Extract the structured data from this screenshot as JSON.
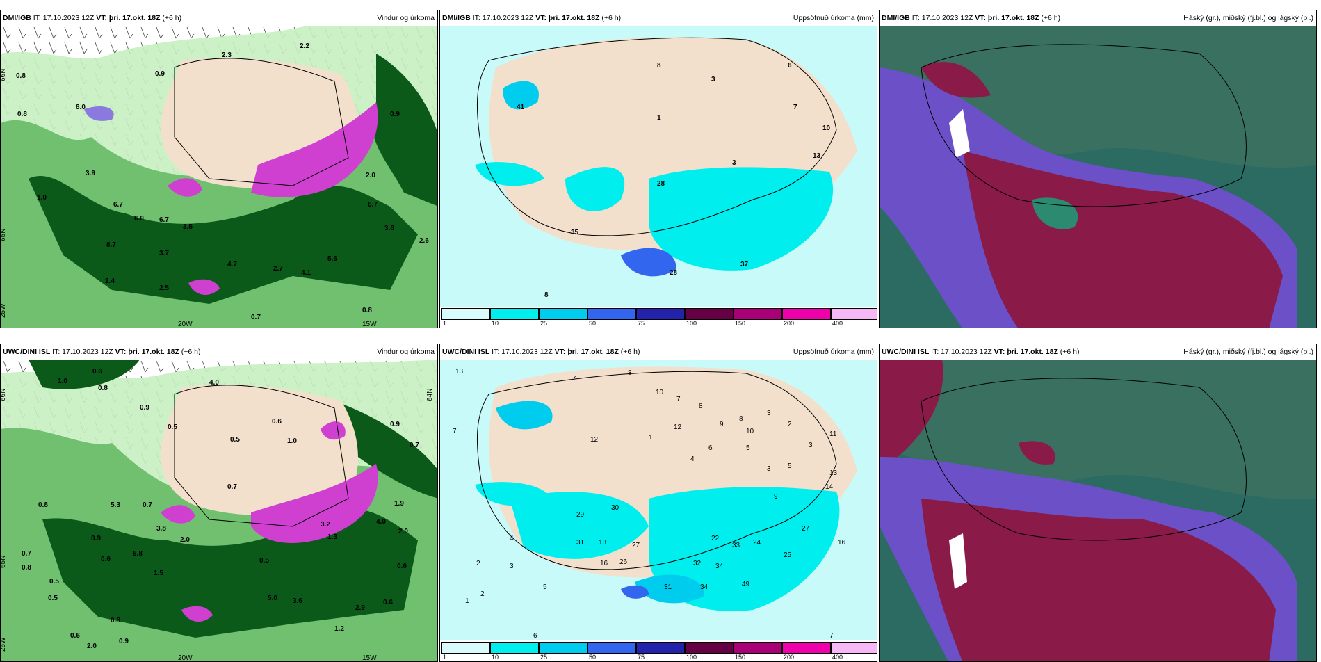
{
  "panels": [
    {
      "source": "DMI/IGB",
      "it": "IT: 17.10.2023 12Z",
      "vt": "VT: þri. 17.okt. 18Z",
      "lead": "(+6 h)",
      "title": "Vindur og úrkoma",
      "labels": [
        "0.8",
        "0.8",
        "8.0",
        "3.9",
        "1.0",
        "6.7",
        "6.0",
        "6.7",
        "8.7",
        "3.7",
        "2.4",
        "2.5",
        "4.7",
        "2.7",
        "4.1",
        "5.6",
        "3.8",
        "2.6",
        "0.9",
        "0.8",
        "0.7",
        "2.3",
        "2.2",
        "2.0",
        "6.7",
        "0.9",
        "3.5"
      ],
      "axis": [
        "66N",
        "65N",
        "25W",
        "20W",
        "15W"
      ]
    },
    {
      "source": "DMI/IGB",
      "it": "IT: 17.10.2023 12Z",
      "vt": "VT: þri. 17.okt. 18Z",
      "lead": "(+6 h)",
      "title": "Uppsöfnuð úrkoma (mm)",
      "labels": [
        "41",
        "28",
        "35",
        "37",
        "8",
        "8",
        "6",
        "3",
        "7",
        "10",
        "13",
        "3",
        "1",
        "28"
      ]
    },
    {
      "source": "DMI/IGB",
      "it": "IT: 17.10.2023 12Z",
      "vt": "VT: þri. 17.okt. 18Z",
      "lead": "(+6 h)",
      "title": "Háský (gr.), miðský (fj.bl.) og lágský (bl.)"
    },
    {
      "source": "UWC/DINI ISL",
      "it": "IT: 17.10.2023 12Z",
      "vt": "VT: þri. 17.okt. 18Z",
      "lead": "(+6 h)",
      "title": "Vindur og úrkoma",
      "labels": [
        "1.0",
        "0.6",
        "0.8",
        "4.0",
        "0.9",
        "0.5",
        "0.6",
        "1.0",
        "0.9",
        "0.7",
        "0.6",
        "0.7",
        "0.5",
        "5.3",
        "3.8",
        "0.8",
        "0.7",
        "0.5",
        "6.8",
        "2.0",
        "0.5",
        "0.6",
        "0.9",
        "1.5",
        "2.0",
        "1.9",
        "3.2",
        "4.0",
        "1.3",
        "2.9",
        "0.6",
        "5.0",
        "3.6",
        "0.8",
        "0.6",
        "0.9",
        "2.0",
        "1.2",
        "0.6",
        "0.5",
        "0.8"
      ],
      "axis": [
        "66N",
        "65N",
        "64N",
        "25W",
        "20W",
        "15W"
      ]
    },
    {
      "source": "UWC/DINI ISL",
      "it": "IT: 17.10.2023 12Z",
      "vt": "VT: þri. 17.okt. 18Z",
      "lead": "(+6 h)",
      "title": "Uppsöfnuð úrkoma (mm)",
      "labels": [
        "13",
        "7",
        "8",
        "10",
        "7",
        "8",
        "12",
        "1",
        "9",
        "8",
        "4",
        "6",
        "5",
        "3",
        "2",
        "3",
        "11",
        "13",
        "14",
        "27",
        "30",
        "29",
        "31",
        "13",
        "27",
        "16",
        "26",
        "32",
        "34",
        "31",
        "49",
        "25",
        "34",
        "7",
        "6",
        "2",
        "3",
        "5",
        "2",
        "1",
        "12",
        "16",
        "33",
        "24",
        "22",
        "10",
        "9",
        "3",
        "5",
        "7",
        "4"
      ]
    },
    {
      "source": "UWC/DINI ISL",
      "it": "IT: 17.10.2023 12Z",
      "vt": "VT: þri. 17.okt. 18Z",
      "lead": "(+6 h)",
      "title": "Háský (gr.), miðský (fj.bl.) og lágský (bl.)"
    }
  ],
  "colorbar": {
    "ticks": [
      "1",
      "10",
      "25",
      "50",
      "75",
      "100",
      "150",
      "200",
      "400"
    ],
    "colors": [
      "#d8fbfb",
      "#00eeee",
      "#00ccee",
      "#3366ee",
      "#2222aa",
      "#660044",
      "#aa0077",
      "#ee00aa",
      "#f5b8f5"
    ]
  },
  "palette": {
    "land": "#f2e0cc",
    "wind_light": "#c8f0c0",
    "wind_mid": "#70c070",
    "wind_dark": "#0b5a1a",
    "precip_pink": "#d040d0",
    "ocean_cloud": "#2b6b62",
    "high": "#3a7060",
    "mid": "#6b50c8",
    "low": "#8a1a48",
    "sea": "#c8fafa"
  }
}
